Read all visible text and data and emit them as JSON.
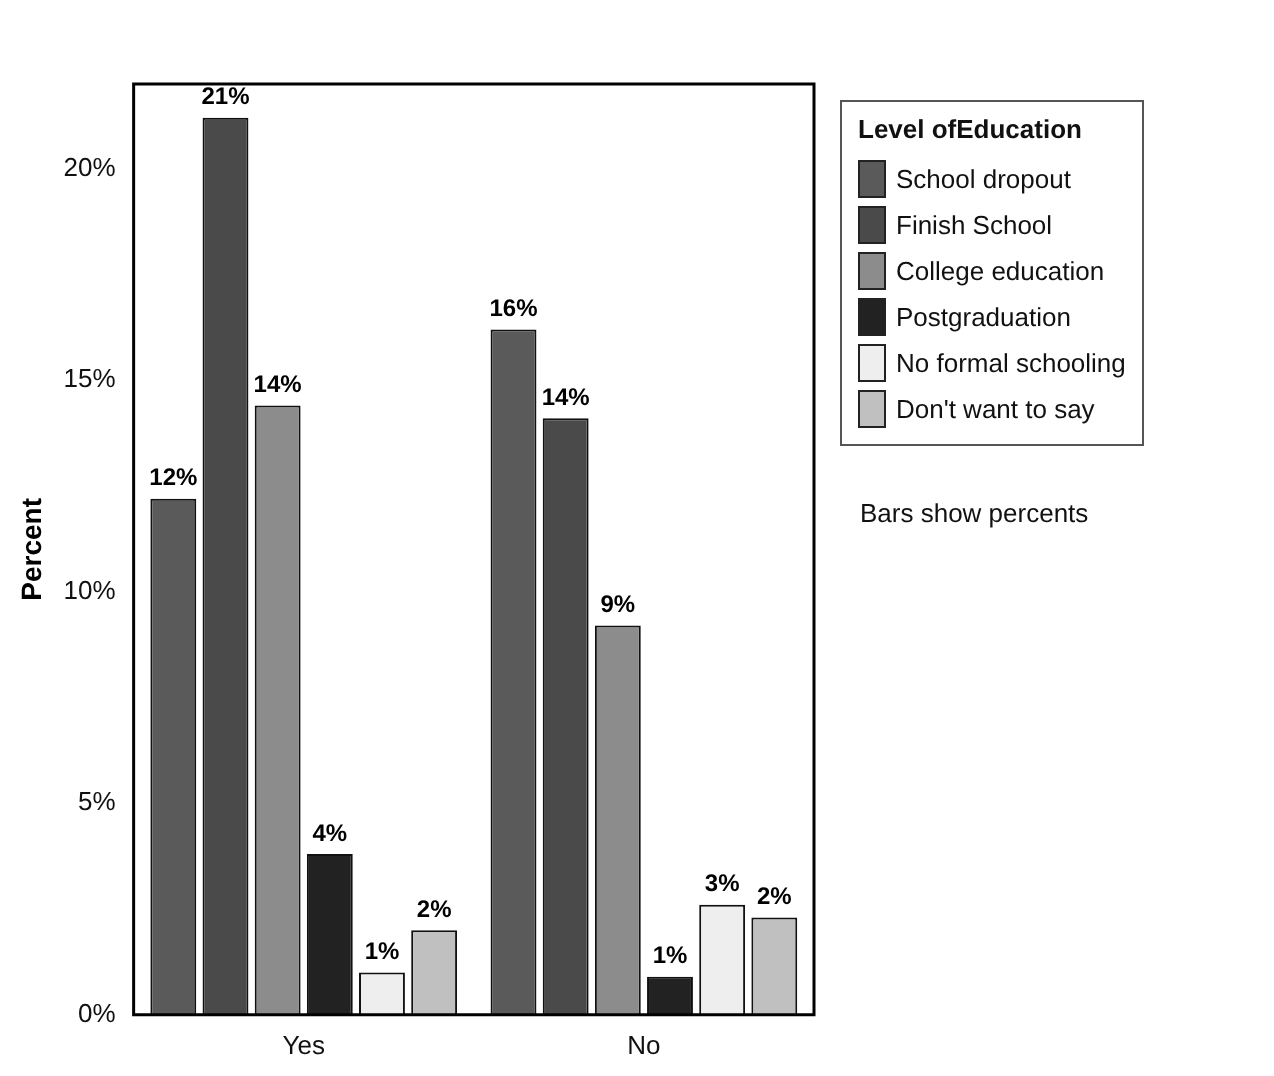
{
  "chart_data": {
    "type": "bar",
    "ylabel": "Percent",
    "legend_title": "Level ofEducation",
    "categories": [
      "Yes",
      "No"
    ],
    "series": [
      {
        "name": "School dropout",
        "color": "#5a5a5a",
        "values": [
          12.2,
          16.2
        ],
        "value_labels": [
          "12%",
          "16%"
        ]
      },
      {
        "name": "Finish School",
        "color": "#4a4a4a",
        "values": [
          21.2,
          14.1
        ],
        "value_labels": [
          "21%",
          "14%"
        ]
      },
      {
        "name": "College education",
        "color": "#8c8c8c",
        "values": [
          14.4,
          9.2
        ],
        "value_labels": [
          "14%",
          "9%"
        ]
      },
      {
        "name": "Postgraduation",
        "color": "#222222",
        "values": [
          3.8,
          0.9
        ],
        "value_labels": [
          "4%",
          "1%"
        ]
      },
      {
        "name": "No formal schooling",
        "color": "#eeeeee",
        "values": [
          1.0,
          2.6
        ],
        "value_labels": [
          "1%",
          "3%"
        ]
      },
      {
        "name": "Don't want to say",
        "color": "#c0c0c0",
        "values": [
          2.0,
          2.3
        ],
        "value_labels": [
          "2%",
          "2%"
        ]
      }
    ],
    "ylim": [
      0,
      22
    ],
    "yticks": [
      {
        "value": 0,
        "label": "0%"
      },
      {
        "value": 5,
        "label": "5%"
      },
      {
        "value": 10,
        "label": "10%"
      },
      {
        "value": 15,
        "label": "15%"
      },
      {
        "value": 20,
        "label": "20%"
      }
    ],
    "grid": false,
    "legend": "right",
    "annotations": [
      "Bars show percents"
    ]
  }
}
